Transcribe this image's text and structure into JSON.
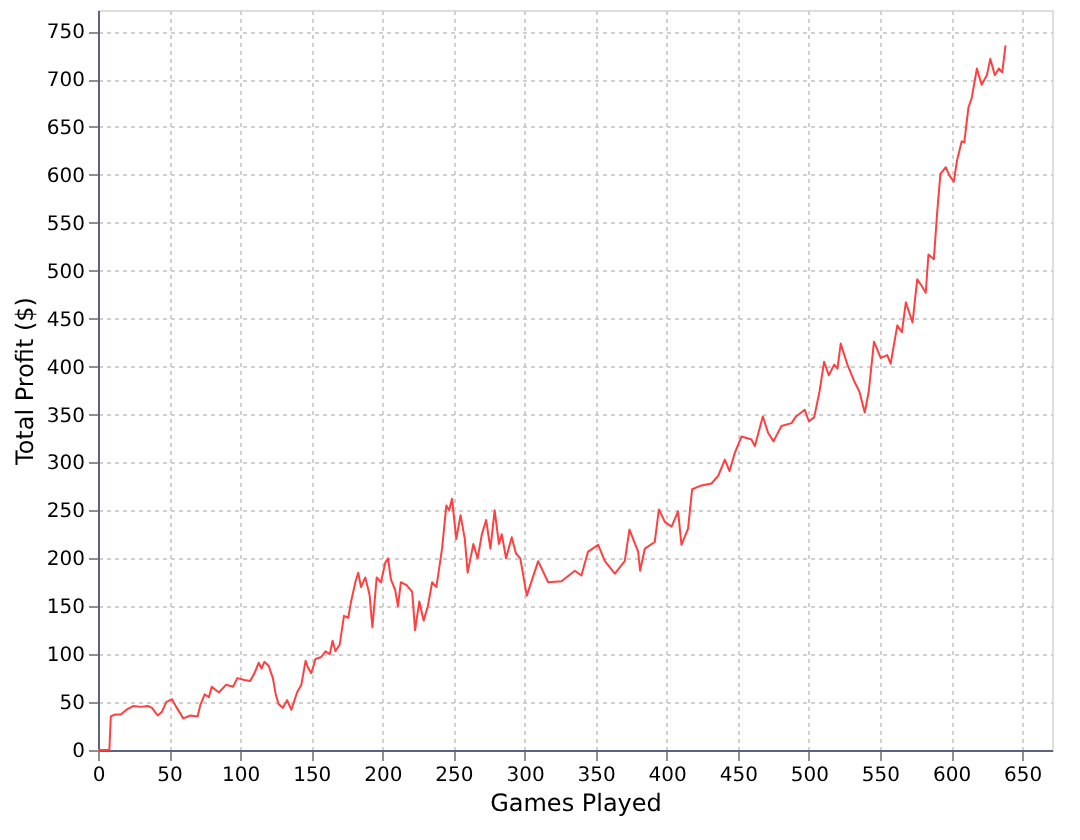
{
  "chart_data": {
    "type": "line",
    "xlabel": "Games Played",
    "ylabel": "Total Profit ($)",
    "xlim": [
      0,
      671
    ],
    "ylim": [
      0,
      772
    ],
    "xticks": [
      0,
      50,
      100,
      150,
      200,
      250,
      300,
      350,
      400,
      450,
      500,
      550,
      600,
      650
    ],
    "yticks": [
      0,
      50,
      100,
      150,
      200,
      250,
      300,
      350,
      400,
      450,
      500,
      550,
      600,
      650,
      700,
      750
    ],
    "grid": true,
    "marker": "none",
    "line_style": "solid",
    "series": [
      {
        "color": "#ff4040",
        "x": [
          0,
          8,
          9,
          12,
          16,
          20,
          25,
          30,
          35,
          38,
          42,
          45,
          48,
          52,
          55,
          60,
          65,
          70,
          72,
          75,
          78,
          80,
          85,
          90,
          95,
          98,
          103,
          107,
          110,
          113,
          115,
          117,
          120,
          123,
          125,
          127,
          130,
          133,
          136,
          140,
          143,
          146,
          148,
          150,
          153,
          157,
          160,
          163,
          165,
          167,
          170,
          173,
          176,
          178,
          181,
          183,
          185,
          188,
          191,
          193,
          196,
          199,
          202,
          204,
          206,
          209,
          211,
          213,
          217,
          221,
          223,
          226,
          229,
          232,
          235,
          238,
          242,
          245,
          247,
          249,
          252,
          255,
          258,
          260,
          264,
          267,
          270,
          273,
          276,
          279,
          282,
          284,
          287,
          291,
          294,
          297,
          301.6,
          309.6,
          316.6,
          326,
          335.4,
          340,
          344.7,
          351.8,
          356.5,
          363.5,
          370.5,
          373.8,
          379.9,
          381.3,
          384.6,
          391.6,
          394.5,
          398.7,
          403.4,
          408,
          410.4,
          415,
          417.9,
          424.5,
          431.5,
          436.2,
          440.9,
          444.2,
          447.9,
          452.6,
          459.6,
          462,
          467.6,
          471.3,
          475.1,
          480.7,
          487.8,
          491,
          497.1,
          500,
          503.7,
          507.5,
          510.7,
          514,
          517.8,
          520.1,
          522.4,
          527.1,
          531.8,
          535.5,
          539.3,
          542.1,
          545.8,
          550.5,
          555.1,
          557.5,
          562.2,
          565.4,
          568.2,
          572.9,
          576.2,
          579.4,
          582.2,
          584.1,
          587.9,
          590.2,
          592.5,
          596.3,
          598.6,
          601.9,
          604.2,
          607.5,
          609.3,
          612.2,
          614.5,
          618.2,
          621.5,
          625.2,
          627.6,
          630.8,
          633.6,
          636,
          638.3
        ],
        "values": [
          0,
          0,
          35,
          37,
          37,
          42,
          46,
          45,
          46,
          44,
          36,
          40,
          50,
          53,
          45,
          33,
          36,
          35,
          47,
          58,
          55,
          66,
          60,
          68,
          66,
          75,
          73,
          72,
          80,
          91,
          85,
          92,
          88,
          75,
          58,
          48,
          44,
          52,
          42,
          60,
          68,
          93,
          85,
          80,
          95,
          97,
          103,
          100,
          114,
          103,
          110,
          140,
          138,
          155,
          175,
          185,
          170,
          180,
          162,
          128,
          180,
          175,
          195,
          200,
          178,
          167,
          150,
          175,
          172,
          165,
          125,
          155,
          135,
          150,
          175,
          170,
          210,
          255,
          250,
          262,
          220,
          245,
          220,
          185,
          215,
          200,
          225,
          240,
          210,
          250,
          215,
          225,
          200,
          222,
          205,
          200,
          161,
          197,
          175,
          176,
          187,
          182,
          207,
          214,
          197,
          184,
          197,
          230,
          207,
          187,
          210,
          217,
          251,
          238,
          233,
          249,
          214,
          231,
          272,
          276,
          278,
          286,
          303,
          291,
          310,
          327,
          324,
          317,
          348,
          331,
          322,
          338,
          341,
          348,
          355,
          343,
          347,
          374,
          405,
          391,
          402,
          398,
          424,
          402,
          385,
          374,
          352,
          374,
          426,
          409,
          412,
          403,
          443,
          436,
          467,
          446,
          491,
          484,
          477,
          517,
          512,
          560,
          601,
          608,
          600,
          593,
          615,
          635,
          634,
          670,
          680,
          711,
          694,
          704,
          721,
          704,
          711,
          707,
          735
        ]
      }
    ]
  }
}
